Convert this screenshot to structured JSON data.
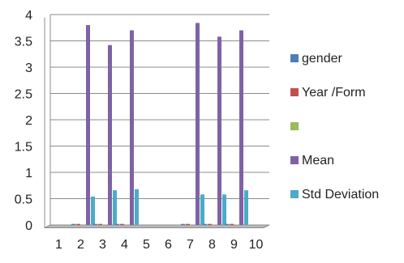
{
  "chart_data": {
    "type": "bar",
    "title": "",
    "xlabel": "",
    "ylabel": "",
    "categories": [
      "1",
      "2",
      "3",
      "4",
      "5",
      "6",
      "7",
      "8",
      "9",
      "10"
    ],
    "ylim": [
      0,
      4
    ],
    "yticks": [
      0,
      0.5,
      1,
      1.5,
      2,
      2.5,
      3,
      3.5,
      4
    ],
    "grid": true,
    "legend_position": "right",
    "series": [
      {
        "name": "gender",
        "color": "#4a7ebb",
        "values": [
          0,
          0.02,
          0.02,
          0.02,
          0,
          0,
          0.02,
          0.02,
          0.02,
          0
        ]
      },
      {
        "name": "Year /Form",
        "color": "#c0504d",
        "values": [
          0,
          0.02,
          0.02,
          0.02,
          0,
          0,
          0.02,
          0.02,
          0.02,
          0
        ]
      },
      {
        "name": "",
        "color": "#9bbb59",
        "values": [
          0,
          0,
          0,
          0,
          0,
          0,
          0,
          0,
          0,
          0
        ]
      },
      {
        "name": "Mean",
        "color": "#7f62a6",
        "values": [
          0,
          3.8,
          3.42,
          3.7,
          0,
          0,
          3.84,
          3.58,
          3.7,
          0
        ]
      },
      {
        "name": "Std Deviation",
        "color": "#4bacc6",
        "values": [
          0,
          0.54,
          0.66,
          0.68,
          0,
          0,
          0.58,
          0.58,
          0.66,
          0
        ]
      }
    ]
  }
}
